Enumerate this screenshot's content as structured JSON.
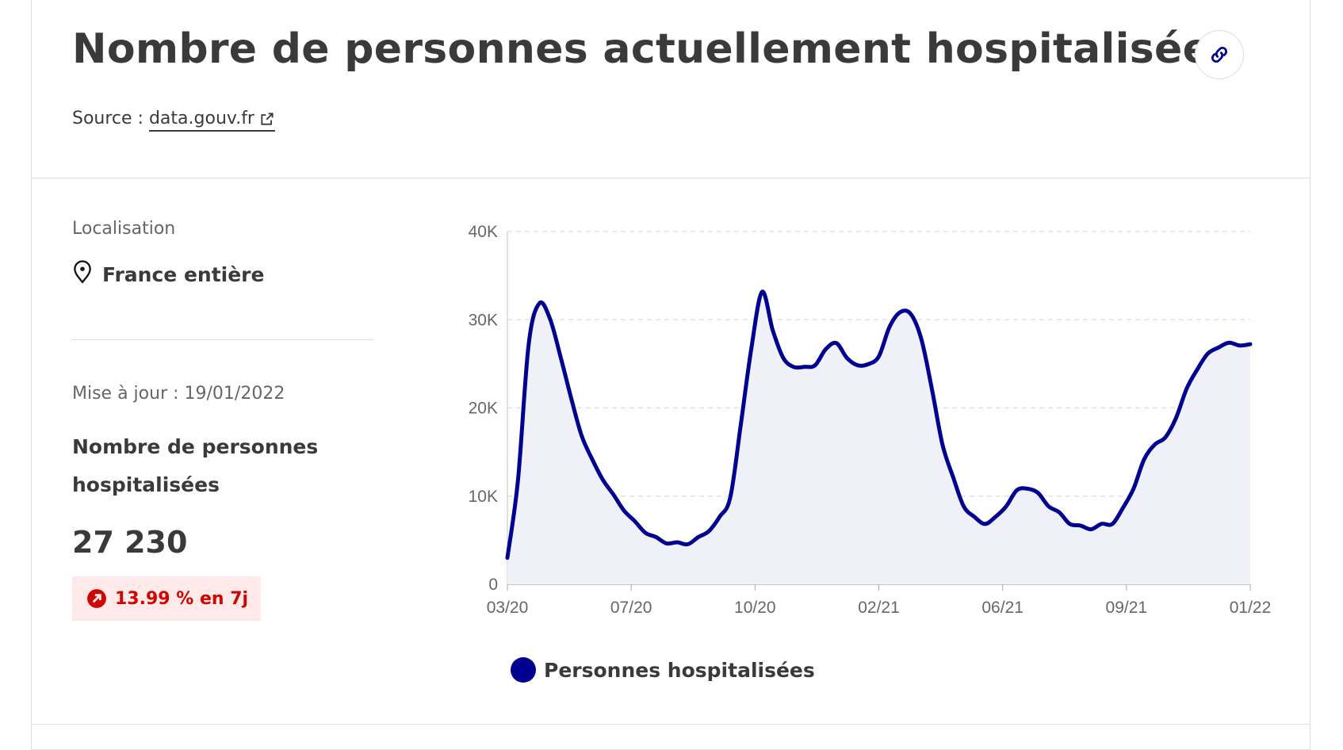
{
  "header": {
    "title": "Nombre de personnes actuellement hospitalisées",
    "source_prefix": "Source : ",
    "source_link": "data.gouv.fr",
    "link_icon": "link-icon",
    "external_icon": "external-link-icon"
  },
  "side": {
    "location_label": "Localisation",
    "location_value": "France entière",
    "location_icon": "map-pin-icon",
    "update_text": "Mise à jour : 19/01/2022",
    "metric_label": "Nombre de personnes hospitalisées",
    "metric_value": "27 230",
    "trend_text": "13.99 % en 7j",
    "trend_icon": "arrow-up-right-circle-icon"
  },
  "colors": {
    "accent": "#000091",
    "area_fill": "#f0f1f8",
    "trend_red": "#ce0500",
    "trend_bg": "#ffe9e9"
  },
  "chart_data": {
    "type": "area",
    "ylim": [
      0,
      40000
    ],
    "y_ticks": [
      0,
      10000,
      20000,
      30000,
      40000
    ],
    "y_tick_labels": [
      "0",
      "10K",
      "20K",
      "30K",
      "40K"
    ],
    "x_tick_labels": [
      "03/20",
      "07/20",
      "10/20",
      "02/21",
      "06/21",
      "09/21",
      "01/22"
    ],
    "grid": "horizontal dashed",
    "legend": "bottom",
    "series": [
      {
        "name": "Personnes hospitalisées",
        "color": "#000091",
        "x": [
          "03/2020",
          "03/2020",
          "03/2020",
          "04/2020",
          "04/2020",
          "04/2020",
          "04/2020",
          "05/2020",
          "05/2020",
          "05/2020",
          "05/2020",
          "06/2020",
          "06/2020",
          "06/2020",
          "07/2020",
          "07/2020",
          "07/2020",
          "08/2020",
          "08/2020",
          "08/2020",
          "09/2020",
          "09/2020",
          "09/2020",
          "10/2020",
          "10/2020",
          "10/2020",
          "11/2020",
          "11/2020",
          "11/2020",
          "11/2020",
          "12/2020",
          "12/2020",
          "12/2020",
          "01/2021",
          "01/2021",
          "01/2021",
          "02/2021",
          "02/2021",
          "02/2021",
          "03/2021",
          "03/2021",
          "03/2021",
          "04/2021",
          "04/2021",
          "04/2021",
          "05/2021",
          "05/2021",
          "05/2021",
          "06/2021",
          "06/2021",
          "06/2021",
          "07/2021",
          "07/2021",
          "07/2021",
          "08/2021",
          "08/2021",
          "08/2021",
          "09/2021",
          "09/2021",
          "09/2021",
          "10/2021",
          "10/2021",
          "10/2021",
          "11/2021",
          "11/2021",
          "11/2021",
          "12/2021",
          "12/2021",
          "12/2021",
          "01/2022",
          "01/2022"
        ],
        "y": [
          3000,
          12000,
          27000,
          32000,
          30000,
          26000,
          21000,
          17000,
          14000,
          12000,
          10000,
          8500,
          7000,
          6000,
          5200,
          4800,
          4600,
          4700,
          5200,
          6200,
          7500,
          10000,
          18000,
          27000,
          33000,
          29000,
          25500,
          24800,
          24500,
          25000,
          26500,
          27500,
          25500,
          25000,
          24800,
          26000,
          29000,
          31000,
          30500,
          28000,
          22000,
          16000,
          12000,
          9000,
          7500,
          7000,
          7500,
          9000,
          10500,
          11000,
          10200,
          9000,
          8000,
          7000,
          6500,
          6400,
          6700,
          7000,
          8500,
          11000,
          14000,
          16000,
          16500,
          19000,
          22000,
          24500,
          26000,
          27000,
          27230,
          27230,
          27230
        ]
      }
    ]
  }
}
